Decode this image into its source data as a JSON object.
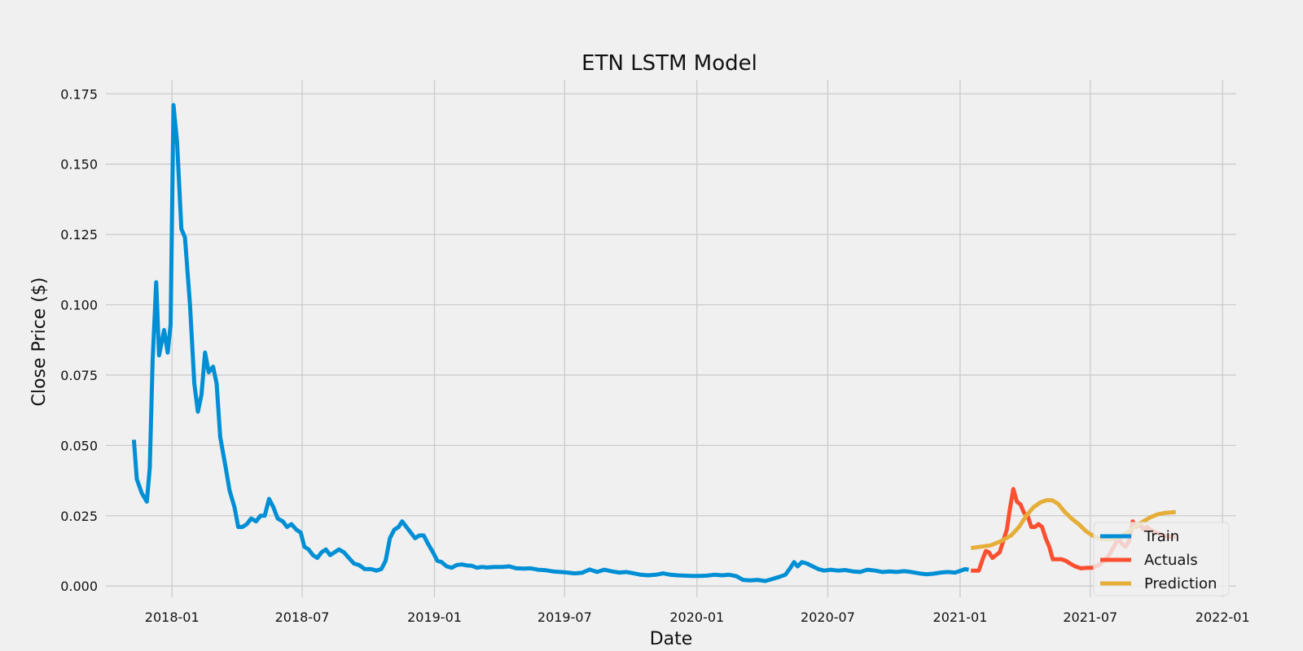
{
  "chart_data": {
    "type": "line",
    "title": "ETN LSTM Model",
    "xlabel": "Date",
    "ylabel": "Close Price ($)",
    "xlim": [
      "2017-10-01",
      "2022-01-20"
    ],
    "ylim": [
      -0.004,
      0.18
    ],
    "x_ticks": [
      "2018-01",
      "2018-07",
      "2019-01",
      "2019-07",
      "2020-01",
      "2020-07",
      "2021-01",
      "2021-07",
      "2022-01"
    ],
    "y_ticks": [
      "0.000",
      "0.025",
      "0.050",
      "0.075",
      "0.100",
      "0.125",
      "0.150",
      "0.175"
    ],
    "grid": true,
    "legend_position": "lower-right",
    "series": [
      {
        "name": "Train",
        "color": "#008fd5",
        "points": [
          [
            "2017-11-09",
            0.052
          ],
          [
            "2017-11-13",
            0.038
          ],
          [
            "2017-11-20",
            0.033
          ],
          [
            "2017-11-27",
            0.03
          ],
          [
            "2017-12-01",
            0.042
          ],
          [
            "2017-12-05",
            0.08
          ],
          [
            "2017-12-10",
            0.108
          ],
          [
            "2017-12-14",
            0.082
          ],
          [
            "2017-12-21",
            0.091
          ],
          [
            "2017-12-26",
            0.083
          ],
          [
            "2017-12-30",
            0.093
          ],
          [
            "2018-01-03",
            0.171
          ],
          [
            "2018-01-08",
            0.158
          ],
          [
            "2018-01-14",
            0.127
          ],
          [
            "2018-01-19",
            0.124
          ],
          [
            "2018-01-26",
            0.1
          ],
          [
            "2018-02-01",
            0.072
          ],
          [
            "2018-02-06",
            0.062
          ],
          [
            "2018-02-11",
            0.068
          ],
          [
            "2018-02-16",
            0.083
          ],
          [
            "2018-02-21",
            0.076
          ],
          [
            "2018-02-27",
            0.078
          ],
          [
            "2018-03-04",
            0.072
          ],
          [
            "2018-03-09",
            0.053
          ],
          [
            "2018-03-16",
            0.043
          ],
          [
            "2018-03-22",
            0.034
          ],
          [
            "2018-03-29",
            0.028
          ],
          [
            "2018-04-03",
            0.021
          ],
          [
            "2018-04-09",
            0.021
          ],
          [
            "2018-04-15",
            0.022
          ],
          [
            "2018-04-21",
            0.024
          ],
          [
            "2018-04-28",
            0.023
          ],
          [
            "2018-05-04",
            0.025
          ],
          [
            "2018-05-10",
            0.025
          ],
          [
            "2018-05-16",
            0.031
          ],
          [
            "2018-05-22",
            0.028
          ],
          [
            "2018-05-28",
            0.024
          ],
          [
            "2018-06-04",
            0.023
          ],
          [
            "2018-06-10",
            0.021
          ],
          [
            "2018-06-16",
            0.022
          ],
          [
            "2018-06-23",
            0.02
          ],
          [
            "2018-06-29",
            0.019
          ],
          [
            "2018-07-04",
            0.014
          ],
          [
            "2018-07-10",
            0.013
          ],
          [
            "2018-07-16",
            0.011
          ],
          [
            "2018-07-22",
            0.01
          ],
          [
            "2018-07-28",
            0.012
          ],
          [
            "2018-08-03",
            0.013
          ],
          [
            "2018-08-09",
            0.011
          ],
          [
            "2018-08-15",
            0.012
          ],
          [
            "2018-08-21",
            0.013
          ],
          [
            "2018-08-28",
            0.012
          ],
          [
            "2018-09-04",
            0.01
          ],
          [
            "2018-09-11",
            0.008
          ],
          [
            "2018-09-18",
            0.0075
          ],
          [
            "2018-09-26",
            0.006
          ],
          [
            "2018-10-05",
            0.006
          ],
          [
            "2018-10-12",
            0.0055
          ],
          [
            "2018-10-19",
            0.006
          ],
          [
            "2018-10-25",
            0.009
          ],
          [
            "2018-10-31",
            0.017
          ],
          [
            "2018-11-06",
            0.02
          ],
          [
            "2018-11-12",
            0.021
          ],
          [
            "2018-11-17",
            0.023
          ],
          [
            "2018-11-23",
            0.021
          ],
          [
            "2018-11-29",
            0.019
          ],
          [
            "2018-12-05",
            0.017
          ],
          [
            "2018-12-11",
            0.018
          ],
          [
            "2018-12-17",
            0.018
          ],
          [
            "2018-12-23",
            0.015
          ],
          [
            "2018-12-30",
            0.012
          ],
          [
            "2019-01-05",
            0.009
          ],
          [
            "2019-01-11",
            0.0085
          ],
          [
            "2019-01-18",
            0.007
          ],
          [
            "2019-01-25",
            0.0065
          ],
          [
            "2019-02-01",
            0.0075
          ],
          [
            "2019-02-08",
            0.0077
          ],
          [
            "2019-02-15",
            0.0073
          ],
          [
            "2019-02-22",
            0.0072
          ],
          [
            "2019-03-01",
            0.0065
          ],
          [
            "2019-03-08",
            0.0068
          ],
          [
            "2019-03-15",
            0.0066
          ],
          [
            "2019-03-25",
            0.0068
          ],
          [
            "2019-04-05",
            0.0068
          ],
          [
            "2019-04-15",
            0.007
          ],
          [
            "2019-04-25",
            0.0063
          ],
          [
            "2019-05-05",
            0.0062
          ],
          [
            "2019-05-15",
            0.0063
          ],
          [
            "2019-05-25",
            0.0058
          ],
          [
            "2019-06-05",
            0.0056
          ],
          [
            "2019-06-15",
            0.0052
          ],
          [
            "2019-06-25",
            0.005
          ],
          [
            "2019-07-05",
            0.0048
          ],
          [
            "2019-07-15",
            0.0045
          ],
          [
            "2019-07-25",
            0.0047
          ],
          [
            "2019-08-05",
            0.0059
          ],
          [
            "2019-08-15",
            0.005
          ],
          [
            "2019-08-25",
            0.0058
          ],
          [
            "2019-09-05",
            0.0052
          ],
          [
            "2019-09-15",
            0.0048
          ],
          [
            "2019-09-25",
            0.005
          ],
          [
            "2019-10-05",
            0.0045
          ],
          [
            "2019-10-15",
            0.004
          ],
          [
            "2019-10-25",
            0.0038
          ],
          [
            "2019-11-05",
            0.004
          ],
          [
            "2019-11-15",
            0.0045
          ],
          [
            "2019-11-25",
            0.004
          ],
          [
            "2019-12-05",
            0.0038
          ],
          [
            "2019-12-15",
            0.0037
          ],
          [
            "2019-12-25",
            0.0036
          ],
          [
            "2020-01-05",
            0.0036
          ],
          [
            "2020-01-15",
            0.0037
          ],
          [
            "2020-01-25",
            0.004
          ],
          [
            "2020-02-05",
            0.0038
          ],
          [
            "2020-02-15",
            0.004
          ],
          [
            "2020-02-25",
            0.0035
          ],
          [
            "2020-03-05",
            0.0022
          ],
          [
            "2020-03-15",
            0.002
          ],
          [
            "2020-03-25",
            0.0022
          ],
          [
            "2020-04-05",
            0.0018
          ],
          [
            "2020-04-15",
            0.0025
          ],
          [
            "2020-04-25",
            0.0033
          ],
          [
            "2020-05-03",
            0.004
          ],
          [
            "2020-05-10",
            0.0065
          ],
          [
            "2020-05-15",
            0.0085
          ],
          [
            "2020-05-20",
            0.007
          ],
          [
            "2020-05-26",
            0.0085
          ],
          [
            "2020-06-02",
            0.008
          ],
          [
            "2020-06-10",
            0.007
          ],
          [
            "2020-06-18",
            0.006
          ],
          [
            "2020-06-26",
            0.0055
          ],
          [
            "2020-07-05",
            0.0058
          ],
          [
            "2020-07-15",
            0.0055
          ],
          [
            "2020-07-25",
            0.0057
          ],
          [
            "2020-08-05",
            0.0052
          ],
          [
            "2020-08-15",
            0.005
          ],
          [
            "2020-08-25",
            0.0058
          ],
          [
            "2020-09-05",
            0.0055
          ],
          [
            "2020-09-15",
            0.005
          ],
          [
            "2020-09-25",
            0.0052
          ],
          [
            "2020-10-05",
            0.005
          ],
          [
            "2020-10-15",
            0.0053
          ],
          [
            "2020-10-25",
            0.005
          ],
          [
            "2020-11-05",
            0.0045
          ],
          [
            "2020-11-15",
            0.0042
          ],
          [
            "2020-11-25",
            0.0044
          ],
          [
            "2020-12-05",
            0.0048
          ],
          [
            "2020-12-15",
            0.005
          ],
          [
            "2020-12-25",
            0.0048
          ],
          [
            "2021-01-02",
            0.0055
          ],
          [
            "2021-01-08",
            0.006
          ],
          [
            "2021-01-13",
            0.0058
          ]
        ]
      },
      {
        "name": "Actuals",
        "color": "#fc4f30",
        "points": [
          [
            "2021-01-16",
            0.0055
          ],
          [
            "2021-01-21",
            0.0055
          ],
          [
            "2021-01-27",
            0.0055
          ],
          [
            "2021-02-02",
            0.01
          ],
          [
            "2021-02-06",
            0.0125
          ],
          [
            "2021-02-10",
            0.012
          ],
          [
            "2021-02-15",
            0.01
          ],
          [
            "2021-02-20",
            0.011
          ],
          [
            "2021-02-25",
            0.012
          ],
          [
            "2021-03-02",
            0.016
          ],
          [
            "2021-03-07",
            0.02
          ],
          [
            "2021-03-11",
            0.027
          ],
          [
            "2021-03-16",
            0.0345
          ],
          [
            "2021-03-21",
            0.03
          ],
          [
            "2021-03-26",
            0.029
          ],
          [
            "2021-03-31",
            0.026
          ],
          [
            "2021-04-05",
            0.025
          ],
          [
            "2021-04-10",
            0.021
          ],
          [
            "2021-04-15",
            0.021
          ],
          [
            "2021-04-20",
            0.022
          ],
          [
            "2021-04-25",
            0.021
          ],
          [
            "2021-04-30",
            0.017
          ],
          [
            "2021-05-05",
            0.014
          ],
          [
            "2021-05-10",
            0.0095
          ],
          [
            "2021-05-16",
            0.0095
          ],
          [
            "2021-05-22",
            0.0095
          ],
          [
            "2021-05-28",
            0.009
          ],
          [
            "2021-06-03",
            0.008
          ],
          [
            "2021-06-10",
            0.007
          ],
          [
            "2021-06-18",
            0.0063
          ],
          [
            "2021-06-27",
            0.0065
          ],
          [
            "2021-07-05",
            0.0065
          ],
          [
            "2021-07-13",
            0.0075
          ],
          [
            "2021-07-20",
            0.009
          ],
          [
            "2021-07-27",
            0.011
          ],
          [
            "2021-08-03",
            0.014
          ],
          [
            "2021-08-09",
            0.017
          ],
          [
            "2021-08-14",
            0.015
          ],
          [
            "2021-08-19",
            0.014
          ],
          [
            "2021-08-24",
            0.016
          ],
          [
            "2021-08-29",
            0.023
          ],
          [
            "2021-09-03",
            0.021
          ],
          [
            "2021-09-08",
            0.022
          ],
          [
            "2021-09-13",
            0.02
          ],
          [
            "2021-09-18",
            0.021
          ],
          [
            "2021-09-23",
            0.02
          ],
          [
            "2021-10-01",
            0.019
          ],
          [
            "2021-10-10",
            0.018
          ],
          [
            "2021-10-20",
            0.0175
          ],
          [
            "2021-10-28",
            0.0175
          ]
        ]
      },
      {
        "name": "Prediction",
        "color": "#e5ae38",
        "points": [
          [
            "2021-01-16",
            0.0135
          ],
          [
            "2021-01-30",
            0.014
          ],
          [
            "2021-02-13",
            0.0145
          ],
          [
            "2021-02-27",
            0.016
          ],
          [
            "2021-03-13",
            0.018
          ],
          [
            "2021-03-24",
            0.021
          ],
          [
            "2021-04-03",
            0.025
          ],
          [
            "2021-04-13",
            0.028
          ],
          [
            "2021-04-23",
            0.0298
          ],
          [
            "2021-05-01",
            0.0305
          ],
          [
            "2021-05-09",
            0.0305
          ],
          [
            "2021-05-17",
            0.0293
          ],
          [
            "2021-05-26",
            0.0265
          ],
          [
            "2021-06-05",
            0.024
          ],
          [
            "2021-06-15",
            0.022
          ],
          [
            "2021-06-25",
            0.0195
          ],
          [
            "2021-07-05",
            0.0178
          ],
          [
            "2021-07-15",
            0.0168
          ],
          [
            "2021-07-25",
            0.0165
          ],
          [
            "2021-08-04",
            0.0168
          ],
          [
            "2021-08-14",
            0.0178
          ],
          [
            "2021-08-24",
            0.0195
          ],
          [
            "2021-09-03",
            0.0215
          ],
          [
            "2021-09-13",
            0.023
          ],
          [
            "2021-09-23",
            0.0245
          ],
          [
            "2021-10-03",
            0.0255
          ],
          [
            "2021-10-13",
            0.026
          ],
          [
            "2021-10-23",
            0.0262
          ],
          [
            "2021-10-28",
            0.0263
          ]
        ]
      }
    ]
  }
}
